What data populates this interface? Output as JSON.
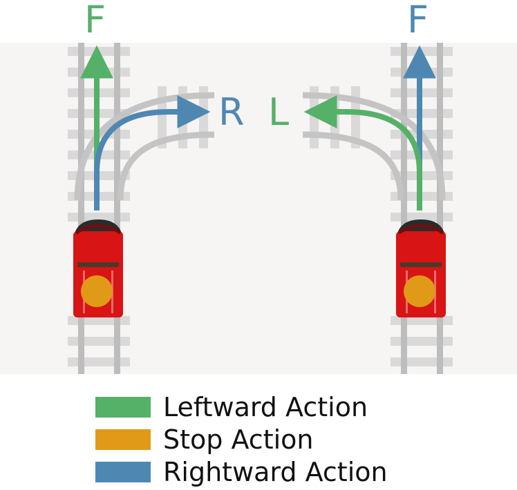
{
  "colors": {
    "left_action": "#55b068",
    "stop_action": "#e09a17",
    "right_action": "#4e88b2",
    "background": "#f7f4f4",
    "train_body": "#d81414",
    "rail": "#c8c8c8"
  },
  "left_scene": {
    "forward_label": "F",
    "turn_label": "R"
  },
  "right_scene": {
    "forward_label": "F",
    "turn_label": "L"
  },
  "legend": [
    {
      "label": "Leftward Action",
      "color": "#55b068"
    },
    {
      "label": "Stop Action",
      "color": "#e09a17"
    },
    {
      "label": "Rightward Action",
      "color": "#4e88b2"
    }
  ]
}
